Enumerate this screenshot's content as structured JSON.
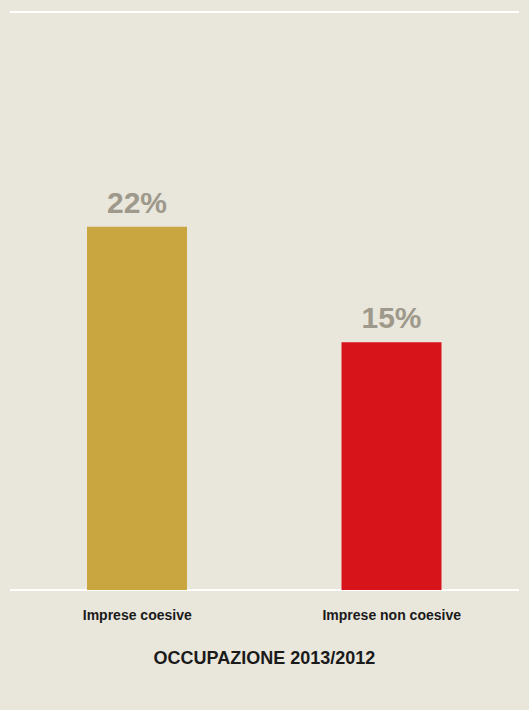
{
  "chart_data": {
    "type": "bar",
    "title": "OCCUPAZIONE 2013/2012",
    "categories": [
      "Imprese coesive",
      "Imprese non coesive"
    ],
    "values": [
      22,
      15
    ],
    "value_labels": [
      "22%",
      "15%"
    ],
    "colors": [
      "#c9a640",
      "#d7141a"
    ],
    "ylim": [
      0,
      35
    ],
    "yticks": [
      0,
      3.5,
      7,
      10.5,
      14,
      17.5,
      21,
      24.5,
      28,
      31.5,
      35
    ],
    "grid": true,
    "data_labels": true,
    "tick_labels": "x"
  }
}
